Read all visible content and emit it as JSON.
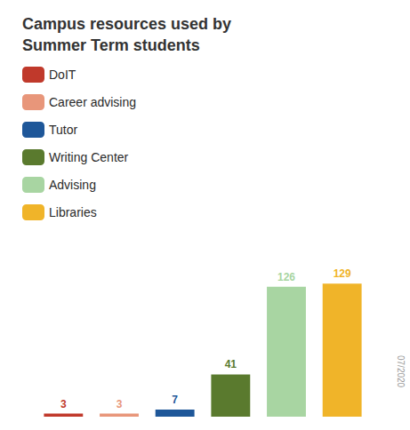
{
  "chart_data": {
    "type": "bar",
    "title": "Campus resources used by\nSummer Term students",
    "categories": [
      "DoIT",
      "Career advising",
      "Tutor",
      "Writing Center",
      "Advising",
      "Libraries"
    ],
    "values": [
      3,
      3,
      7,
      41,
      126,
      129
    ],
    "colors": [
      "#c0392b",
      "#e8967a",
      "#1e5799",
      "#5a7a2e",
      "#a8d5a2",
      "#f0b429"
    ],
    "ylim": [
      0,
      150
    ],
    "data_labels": true,
    "legend": "upper left",
    "grid": false,
    "tick_labels": false,
    "annotations": [
      "07/2020"
    ]
  }
}
